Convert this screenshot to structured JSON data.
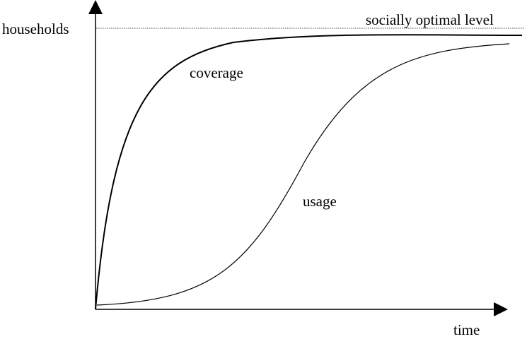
{
  "chart_data": {
    "type": "line",
    "ylabel": "households",
    "xlabel": "time",
    "reference_line": {
      "label": "socially optimal level",
      "style": "dotted"
    },
    "series": [
      {
        "name": "coverage",
        "shape": "concave saturating curve rising quickly from the origin, leveling off just below the socially optimal level"
      },
      {
        "name": "usage",
        "shape": "S-shaped logistic curve rising slowly, then steeply, leveling off near the socially optimal level"
      }
    ],
    "axes": {
      "ticks": false,
      "grid": false,
      "arrowheads": true
    }
  }
}
